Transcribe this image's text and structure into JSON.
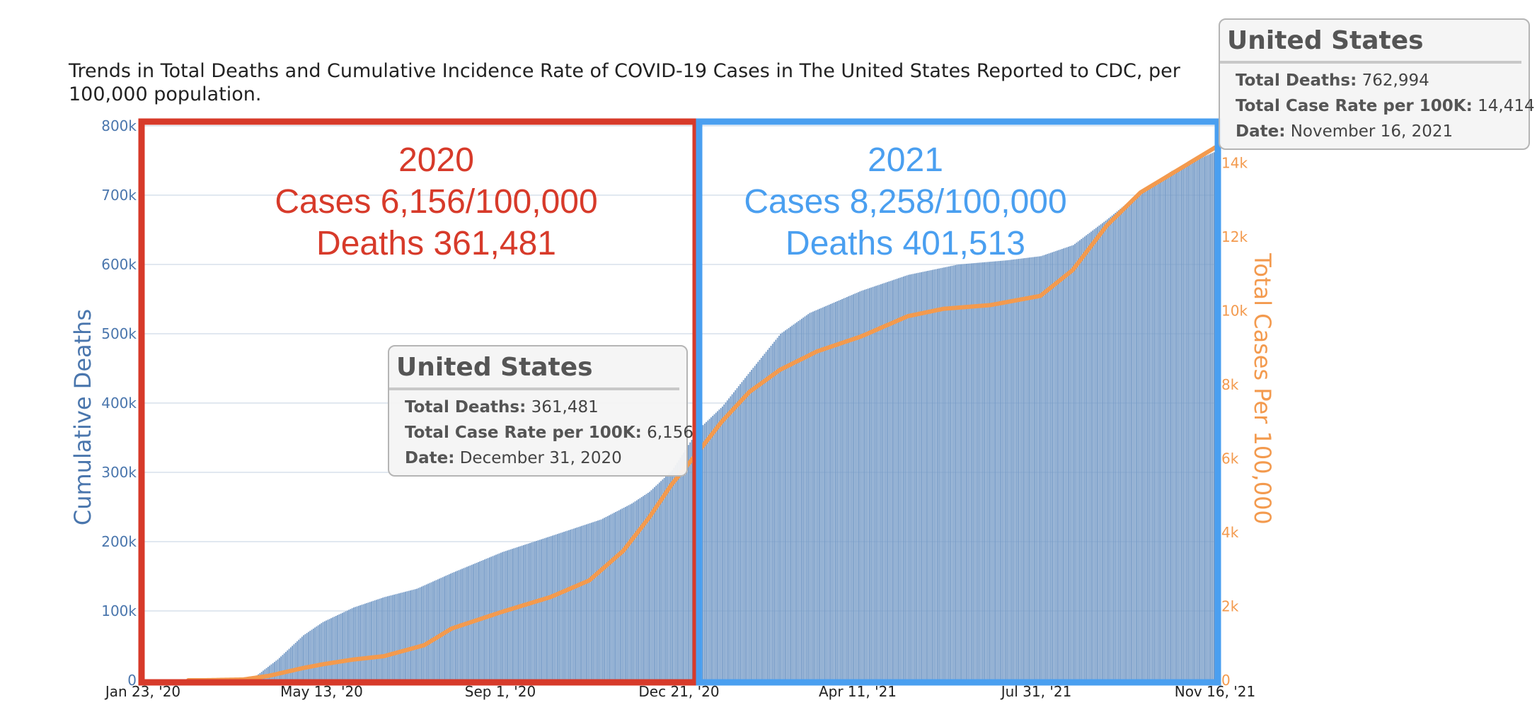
{
  "title": "Trends in Total Deaths and Cumulative Incidence Rate of COVID-19 Cases in The United States Reported to CDC, per 100,000 population.",
  "colors": {
    "deaths_bars": "#7399c6",
    "case_line": "#f39a4e",
    "box_2020": "#d73a2a",
    "box_2021": "#4a9ff0",
    "left_axis": "#4a76ad",
    "right_axis": "#f39a4e"
  },
  "chart_data": {
    "type": "bar",
    "title": "Trends in Total Deaths and Cumulative Incidence Rate of COVID-19 Cases in The United States Reported to CDC, per 100,000 population.",
    "x_ticks": [
      "Jan 23, '20",
      "May 13, '20",
      "Sep 1, '20",
      "Dec 21, '20",
      "Apr 11, '21",
      "Jul 31, '21",
      "Nov 16, '21"
    ],
    "x_range": [
      "2020-01-23",
      "2021-11-16"
    ],
    "left_axis": {
      "label": "Cumulative Deaths",
      "ylim": [
        0,
        800000
      ],
      "ticks": [
        "0",
        "100k",
        "200k",
        "300k",
        "400k",
        "500k",
        "600k",
        "700k",
        "800k"
      ]
    },
    "right_axis": {
      "label": "Total Cases Per 100,000",
      "ylim": [
        0,
        15000
      ],
      "ticks": [
        "0",
        "2k",
        "4k",
        "6k",
        "8k",
        "10k",
        "12k",
        "14k"
      ]
    },
    "grid": true,
    "series": [
      {
        "name": "Total Deaths",
        "type": "bar",
        "axis": "left",
        "points": [
          [
            "2020-01-23",
            0
          ],
          [
            "2020-03-01",
            0
          ],
          [
            "2020-03-20",
            500
          ],
          [
            "2020-04-01",
            5000
          ],
          [
            "2020-04-15",
            30000
          ],
          [
            "2020-05-01",
            65000
          ],
          [
            "2020-05-13",
            84000
          ],
          [
            "2020-06-01",
            105000
          ],
          [
            "2020-06-20",
            120000
          ],
          [
            "2020-07-10",
            132000
          ],
          [
            "2020-08-01",
            155000
          ],
          [
            "2020-09-01",
            185000
          ],
          [
            "2020-10-01",
            208000
          ],
          [
            "2020-11-01",
            232000
          ],
          [
            "2020-11-20",
            255000
          ],
          [
            "2020-12-01",
            272000
          ],
          [
            "2020-12-15",
            303000
          ],
          [
            "2020-12-31",
            361481
          ],
          [
            "2021-01-15",
            395000
          ],
          [
            "2021-02-01",
            445000
          ],
          [
            "2021-02-20",
            500000
          ],
          [
            "2021-03-10",
            530000
          ],
          [
            "2021-04-11",
            562000
          ],
          [
            "2021-05-10",
            585000
          ],
          [
            "2021-06-10",
            600000
          ],
          [
            "2021-07-10",
            606000
          ],
          [
            "2021-07-31",
            612000
          ],
          [
            "2021-08-20",
            628000
          ],
          [
            "2021-09-10",
            665000
          ],
          [
            "2021-10-01",
            705000
          ],
          [
            "2021-10-20",
            735000
          ],
          [
            "2021-11-16",
            762994
          ]
        ]
      },
      {
        "name": "Total Case Rate per 100K",
        "type": "line",
        "axis": "right",
        "points": [
          [
            "2020-03-01",
            0
          ],
          [
            "2020-03-25",
            20
          ],
          [
            "2020-04-10",
            120
          ],
          [
            "2020-05-01",
            330
          ],
          [
            "2020-05-13",
            430
          ],
          [
            "2020-06-01",
            560
          ],
          [
            "2020-06-20",
            650
          ],
          [
            "2020-07-15",
            950
          ],
          [
            "2020-08-01",
            1400
          ],
          [
            "2020-09-01",
            1850
          ],
          [
            "2020-10-01",
            2250
          ],
          [
            "2020-10-25",
            2700
          ],
          [
            "2020-11-15",
            3500
          ],
          [
            "2020-12-01",
            4400
          ],
          [
            "2020-12-15",
            5300
          ],
          [
            "2020-12-31",
            6156
          ],
          [
            "2021-01-15",
            7000
          ],
          [
            "2021-02-01",
            7800
          ],
          [
            "2021-02-20",
            8400
          ],
          [
            "2021-03-15",
            8900
          ],
          [
            "2021-04-11",
            9300
          ],
          [
            "2021-05-10",
            9850
          ],
          [
            "2021-06-01",
            10050
          ],
          [
            "2021-06-30",
            10150
          ],
          [
            "2021-07-31",
            10400
          ],
          [
            "2021-08-20",
            11100
          ],
          [
            "2021-09-10",
            12300
          ],
          [
            "2021-10-01",
            13200
          ],
          [
            "2021-10-20",
            13700
          ],
          [
            "2021-11-16",
            14414
          ]
        ]
      }
    ],
    "annotations": [
      {
        "year": "2020",
        "cases": "Cases 6,156/100,000",
        "deaths": "Deaths 361,481",
        "range": [
          "2020-01-23",
          "2020-12-31"
        ]
      },
      {
        "year": "2021",
        "cases": "Cases 8,258/100,000",
        "deaths": "Deaths 401,513",
        "range": [
          "2020-12-31",
          "2021-11-16"
        ]
      }
    ]
  },
  "tooltips": [
    {
      "title": "United States",
      "deaths_label": "Total Deaths:",
      "deaths_value": "361,481",
      "rate_label": "Total Case Rate per 100K:",
      "rate_value": "6,156",
      "date_label": "Date:",
      "date_value": "December 31, 2020"
    },
    {
      "title": "United States",
      "deaths_label": "Total Deaths:",
      "deaths_value": "762,994",
      "rate_label": "Total Case Rate per 100K:",
      "rate_value": "14,414",
      "date_label": "Date:",
      "date_value": "November 16, 2021"
    }
  ]
}
